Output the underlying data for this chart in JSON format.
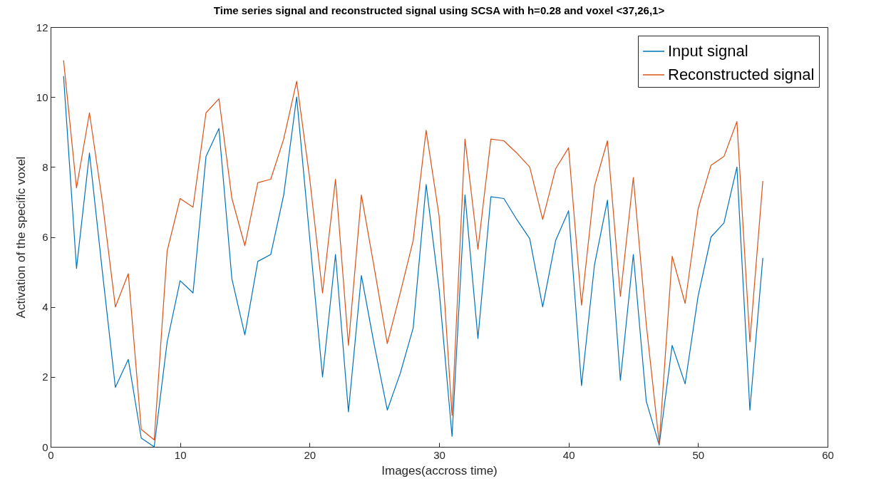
{
  "chart_data": {
    "type": "line",
    "title": "Time series signal and reconstructed signal using SCSA with h=0.28 and voxel <37,26,1>",
    "xlabel": "Images(accross time)",
    "ylabel": "Activation of the specific voxel",
    "x": [
      1,
      2,
      3,
      4,
      5,
      6,
      7,
      8,
      9,
      10,
      11,
      12,
      13,
      14,
      15,
      16,
      17,
      18,
      19,
      20,
      21,
      22,
      23,
      24,
      25,
      26,
      27,
      28,
      29,
      30,
      31,
      32,
      33,
      34,
      35,
      36,
      37,
      38,
      39,
      40,
      41,
      42,
      43,
      44,
      45,
      46,
      47,
      48,
      49,
      50,
      51,
      52,
      53,
      54,
      55
    ],
    "series": [
      {
        "name": "Input signal",
        "color": "#0072bd",
        "values": [
          10.6,
          5.1,
          8.4,
          5.0,
          1.7,
          2.5,
          0.25,
          0.0,
          3.0,
          4.75,
          4.4,
          8.3,
          9.1,
          4.8,
          3.2,
          5.3,
          5.5,
          7.2,
          10.0,
          6.0,
          2.0,
          5.5,
          1.0,
          4.9,
          2.9,
          1.05,
          2.1,
          3.4,
          7.5,
          4.5,
          0.3,
          7.2,
          3.1,
          7.15,
          7.1,
          6.5,
          5.95,
          4.0,
          5.9,
          6.75,
          1.75,
          5.2,
          7.05,
          1.9,
          5.5,
          1.3,
          0.05,
          2.9,
          1.8,
          4.3,
          6.0,
          6.4,
          8.0,
          1.05,
          5.4
        ]
      },
      {
        "name": "Reconstructed signal",
        "color": "#d95319",
        "values": [
          11.05,
          7.4,
          9.55,
          7.0,
          4.0,
          4.95,
          0.5,
          0.2,
          5.6,
          7.1,
          6.85,
          9.55,
          9.95,
          7.1,
          5.75,
          7.55,
          7.65,
          8.8,
          10.45,
          7.7,
          4.4,
          7.65,
          2.9,
          7.2,
          5.1,
          2.95,
          4.4,
          5.9,
          9.05,
          6.6,
          0.9,
          8.8,
          5.65,
          8.8,
          8.75,
          8.4,
          8.0,
          6.5,
          7.95,
          8.55,
          4.05,
          7.45,
          8.75,
          4.3,
          7.7,
          3.5,
          0.1,
          5.45,
          4.1,
          6.8,
          8.05,
          8.3,
          9.3,
          3.0,
          7.6
        ]
      }
    ],
    "xlim": [
      0,
      60
    ],
    "xticks": [
      0,
      10,
      20,
      30,
      40,
      50,
      60
    ],
    "ylim": [
      0,
      12
    ],
    "yticks": [
      0,
      2,
      4,
      6,
      8,
      10,
      12
    ],
    "grid": false,
    "legend": "top right",
    "marker": "none",
    "line_style": "solid"
  }
}
